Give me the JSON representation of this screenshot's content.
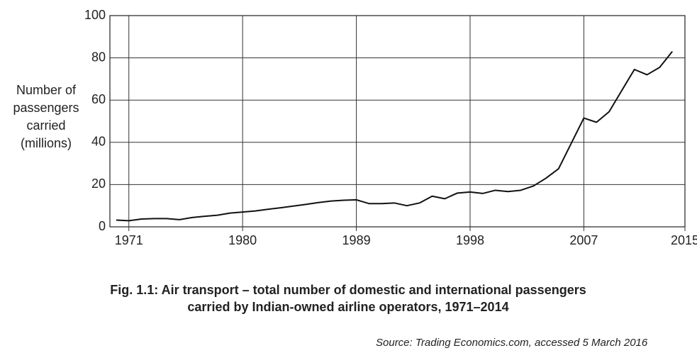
{
  "chart_data": {
    "type": "line",
    "y_axis_label": [
      "Number of",
      "passengers",
      "carried",
      "(millions)"
    ],
    "caption": [
      "Fig. 1.1: Air transport – total number of domestic and international passengers",
      "carried by Indian-owned airline operators, 1971–2014"
    ],
    "source": "Source: Trading Economics.com, accessed 5 March 2016",
    "x": [
      1970,
      1971,
      1972,
      1973,
      1974,
      1975,
      1976,
      1977,
      1978,
      1979,
      1980,
      1981,
      1982,
      1983,
      1984,
      1985,
      1986,
      1987,
      1988,
      1989,
      1990,
      1991,
      1992,
      1993,
      1994,
      1995,
      1996,
      1997,
      1998,
      1999,
      2000,
      2001,
      2002,
      2003,
      2004,
      2005,
      2006,
      2007,
      2008,
      2009,
      2010,
      2011,
      2012,
      2013,
      2014
    ],
    "series": [
      {
        "color": "#111111",
        "values": [
          3.2,
          2.9,
          3.7,
          3.9,
          3.9,
          3.4,
          4.4,
          5,
          5.5,
          6.5,
          7,
          7.5,
          8.3,
          9,
          9.8,
          10.6,
          11.5,
          12.2,
          12.6,
          12.8,
          11,
          11,
          11.3,
          10,
          11.3,
          14.5,
          13.3,
          16,
          16.5,
          15.8,
          17.3,
          16.7,
          17.3,
          19.3,
          23,
          27.5,
          39.5,
          51.5,
          49.5,
          54.5,
          64.5,
          74.5,
          72,
          75.5,
          83
        ]
      }
    ],
    "xlim": [
      1969.5,
      2015
    ],
    "xticks": [
      1971,
      1980,
      1989,
      1998,
      2007,
      2015
    ],
    "ylim": [
      0,
      100
    ],
    "yticks": [
      0,
      20,
      40,
      60,
      80,
      100
    ],
    "grid": true
  }
}
